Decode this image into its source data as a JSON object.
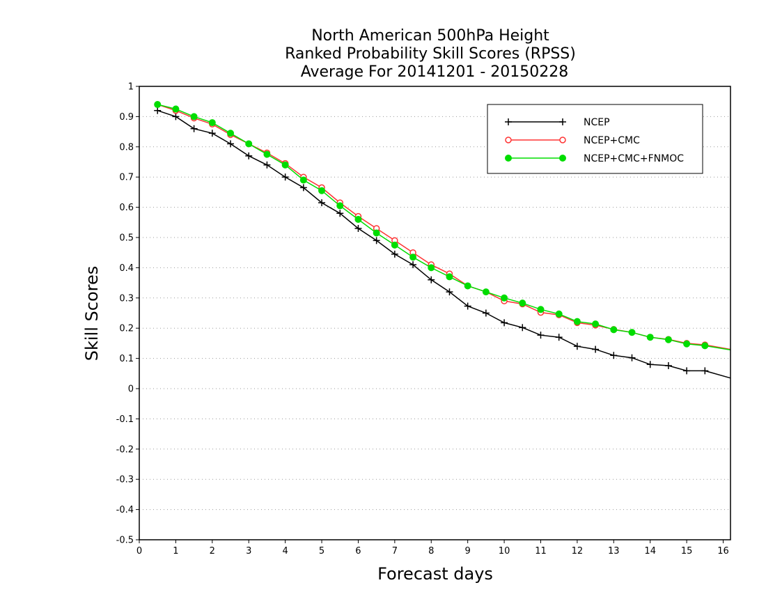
{
  "chart_data": {
    "type": "line",
    "title_lines": [
      "North American 500hPa Height",
      "Ranked Probability Skill Scores (RPSS)",
      "Average For 20141201 - 20150228"
    ],
    "xlabel": "Forecast days",
    "ylabel": "Skill Scores",
    "xlim": [
      0,
      16.2
    ],
    "ylim": [
      -0.5,
      1
    ],
    "x_ticks": [
      0,
      1,
      2,
      3,
      4,
      5,
      6,
      7,
      8,
      9,
      10,
      11,
      12,
      13,
      14,
      15,
      16
    ],
    "y_ticks": [
      -0.5,
      -0.4,
      -0.3,
      -0.2,
      -0.1,
      0,
      0.1,
      0.2,
      0.3,
      0.4,
      0.5,
      0.6,
      0.7,
      0.8,
      0.9,
      1
    ],
    "y_tick_labels": [
      "-0.5",
      "-0.4",
      "-0.3",
      "-0.2",
      "-0.1",
      "0",
      "0.1",
      "0.2",
      "0.3",
      "0.4",
      "0.5",
      "0.6",
      "0.7",
      "0.8",
      "0.9",
      "1"
    ],
    "x_tick_labels": [
      "0",
      "1",
      "2",
      "3",
      "4",
      "5",
      "6",
      "7",
      "8",
      "9",
      "10",
      "11",
      "12",
      "13",
      "14",
      "15",
      "16"
    ],
    "grid": "horizontal-dotted",
    "legend_position": "top-right",
    "x": [
      0.5,
      1.0,
      1.5,
      2.0,
      2.5,
      3.0,
      3.5,
      4.0,
      4.5,
      5.0,
      5.5,
      6.0,
      6.5,
      7.0,
      7.5,
      8.0,
      8.5,
      9.0,
      9.5,
      10.0,
      10.5,
      11.0,
      11.5,
      12.0,
      12.5,
      13.0,
      13.5,
      14.0,
      14.5,
      15.0,
      15.5,
      16.2
    ],
    "series": [
      {
        "name": "NCEP",
        "color": "#000000",
        "marker": "plus",
        "values": [
          0.92,
          0.9,
          0.86,
          0.845,
          0.81,
          0.77,
          0.74,
          0.7,
          0.665,
          0.615,
          0.58,
          0.53,
          0.49,
          0.445,
          0.41,
          0.36,
          0.32,
          0.273,
          0.25,
          0.218,
          0.202,
          0.177,
          0.17,
          0.14,
          0.13,
          0.11,
          0.102,
          0.08,
          0.076,
          0.059,
          0.059,
          0.035
        ]
      },
      {
        "name": "NCEP+CMC",
        "color": "#ff3333",
        "marker": "open-circle",
        "values": [
          0.94,
          0.92,
          0.895,
          0.875,
          0.84,
          0.81,
          0.78,
          0.745,
          0.7,
          0.665,
          0.615,
          0.57,
          0.53,
          0.49,
          0.45,
          0.41,
          0.38,
          0.34,
          0.32,
          0.29,
          0.28,
          0.252,
          0.244,
          0.218,
          0.21,
          0.196,
          0.186,
          0.17,
          0.163,
          0.15,
          0.145,
          0.13
        ]
      },
      {
        "name": "NCEP+CMC+FNMOC",
        "color": "#00dd00",
        "marker": "filled-circle",
        "values": [
          0.94,
          0.925,
          0.9,
          0.88,
          0.845,
          0.81,
          0.775,
          0.74,
          0.69,
          0.655,
          0.605,
          0.56,
          0.515,
          0.475,
          0.435,
          0.4,
          0.37,
          0.34,
          0.32,
          0.3,
          0.283,
          0.262,
          0.247,
          0.222,
          0.214,
          0.195,
          0.186,
          0.17,
          0.162,
          0.148,
          0.142,
          0.128
        ]
      }
    ]
  }
}
